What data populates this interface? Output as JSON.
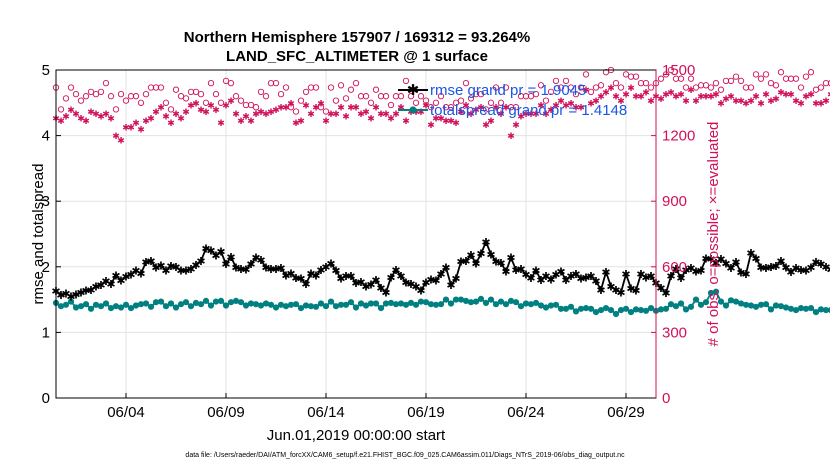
{
  "colors": {
    "rmse": "#000000",
    "spread": "#008080",
    "obs": "#d0105a",
    "legend_text": "#1a56e8",
    "grid": "#e3e3e3"
  },
  "chart_data": {
    "type": "line",
    "title": "Northern Hemisphere 157907 / 169312 = 93.264%",
    "subtitle": "LAND_SFC_ALTIMETER @ 1 surface",
    "xlabel": "Jun.01,2019 00:00:00 start",
    "ylabel": "rmse and totalspread",
    "ylabel_right": "# of obs: o=possible; ×=evaluated",
    "ylim": [
      0,
      5
    ],
    "ylim_right": [
      0,
      1500
    ],
    "y_ticks": [
      "0",
      "1",
      "2",
      "3",
      "4",
      "5"
    ],
    "y_ticks_right": [
      "0",
      "300",
      "600",
      "900",
      "1200",
      "1500"
    ],
    "x_ticks": [
      "06/04",
      "06/09",
      "06/14",
      "06/19",
      "06/24",
      "06/29"
    ],
    "x_tick_positions_days": [
      3.5,
      8.5,
      13.5,
      18.5,
      23.5,
      28.5
    ],
    "xlim_days": [
      0,
      30
    ],
    "step_days": 0.25,
    "legend": [
      "rmse grand pr = 1.9045",
      "totalspread grand pr = 1.4148"
    ],
    "footnote": "data file: /Users/raeder/DAI/ATM_forcXX/CAM6_setup/f.e21.FHIST_BGC.f09_025.CAM6assim.011/Diags_NTrS_2019-06/obs_diag_output.nc",
    "series": [
      {
        "name": "rmse",
        "axis": "left",
        "values": [
          1.63,
          1.57,
          1.59,
          1.55,
          1.58,
          1.61,
          1.64,
          1.65,
          1.7,
          1.72,
          1.78,
          1.74,
          1.87,
          1.79,
          1.85,
          1.88,
          1.94,
          1.9,
          2.07,
          2.09,
          1.99,
          2.02,
          1.94,
          2.01,
          2,
          1.94,
          1.94,
          1.97,
          2.03,
          2.09,
          2.28,
          2.25,
          2.17,
          2.23,
          2.04,
          2.15,
          1.99,
          1.97,
          1.96,
          2.04,
          2.14,
          2.1,
          1.99,
          1.97,
          1.97,
          1.98,
          1.87,
          1.9,
          1.83,
          1.82,
          1.74,
          1.9,
          1.87,
          1.95,
          2,
          2.05,
          1.94,
          1.82,
          1.86,
          1.86,
          1.75,
          1.77,
          1.7,
          1.73,
          1.8,
          1.68,
          1.61,
          1.84,
          1.95,
          1.86,
          1.76,
          1.74,
          1.7,
          1.64,
          1.76,
          1.81,
          1.79,
          1.89,
          1.99,
          1.72,
          1.82,
          2.08,
          2.09,
          2.18,
          2.05,
          2.2,
          2.38,
          2.19,
          2.08,
          2.06,
          1.93,
          2.14,
          1.95,
          1.97,
          1.88,
          1.83,
          1.94,
          1.8,
          1.86,
          1.81,
          1.88,
          1.93,
          1.8,
          1.86,
          1.89,
          1.82,
          1.84,
          1.86,
          1.78,
          1.65,
          1.92,
          1.7,
          1.65,
          1.61,
          1.89,
          1.67,
          1.64,
          1.89,
          1.84,
          1.86,
          1.75,
          1.68,
          1.6,
          1.86,
          1.97,
          1.83,
          1.95,
          1.98,
          1.93,
          1.94,
          2.13,
          2.12,
          2.06,
          2.12,
          2.05,
          1.98,
          2.07,
          1.91,
          1.89,
          2.21,
          2.13,
          1.99,
          1.98,
          2,
          2.01,
          2.09,
          1.99,
          1.92,
          1.98,
          1.95,
          1.94,
          1.99,
          2.07,
          2.04,
          2,
          1.96,
          2.03,
          2.04,
          1.98,
          1.91,
          1.96,
          2.09,
          2.06,
          1.99,
          2.01,
          2.09,
          2.24,
          2.24,
          2.14,
          2.21,
          2.05,
          2.07,
          2.03,
          2.06,
          1.98,
          2.2,
          2.05,
          1.94,
          2.11,
          2.06,
          1.94,
          1.88,
          1.85,
          1.86,
          1.84,
          1.72,
          1.77,
          1.84
        ]
      },
      {
        "name": "totalspread",
        "axis": "left",
        "values": [
          1.45,
          1.4,
          1.42,
          1.47,
          1.38,
          1.4,
          1.43,
          1.36,
          1.42,
          1.4,
          1.44,
          1.37,
          1.4,
          1.38,
          1.42,
          1.37,
          1.41,
          1.43,
          1.44,
          1.39,
          1.46,
          1.47,
          1.4,
          1.44,
          1.38,
          1.43,
          1.46,
          1.4,
          1.45,
          1.43,
          1.48,
          1.41,
          1.47,
          1.48,
          1.41,
          1.46,
          1.48,
          1.46,
          1.41,
          1.44,
          1.43,
          1.41,
          1.44,
          1.42,
          1.38,
          1.42,
          1.4,
          1.42,
          1.43,
          1.37,
          1.41,
          1.4,
          1.39,
          1.44,
          1.4,
          1.47,
          1.4,
          1.42,
          1.42,
          1.46,
          1.38,
          1.44,
          1.41,
          1.44,
          1.44,
          1.37,
          1.44,
          1.45,
          1.43,
          1.44,
          1.42,
          1.45,
          1.42,
          1.47,
          1.46,
          1.43,
          1.42,
          1.43,
          1.5,
          1.44,
          1.5,
          1.5,
          1.48,
          1.46,
          1.47,
          1.51,
          1.45,
          1.5,
          1.43,
          1.47,
          1.43,
          1.48,
          1.46,
          1.4,
          1.44,
          1.43,
          1.45,
          1.41,
          1.38,
          1.41,
          1.42,
          1.36,
          1.36,
          1.39,
          1.32,
          1.36,
          1.37,
          1.36,
          1.31,
          1.34,
          1.37,
          1.34,
          1.28,
          1.34,
          1.36,
          1.31,
          1.35,
          1.34,
          1.33,
          1.37,
          1.33,
          1.35,
          1.36,
          1.43,
          1.4,
          1.44,
          1.35,
          1.39,
          1.5,
          1.42,
          1.46,
          1.6,
          1.62,
          1.47,
          1.41,
          1.49,
          1.47,
          1.44,
          1.42,
          1.41,
          1.39,
          1.42,
          1.43,
          1.35,
          1.41,
          1.4,
          1.38,
          1.36,
          1.34,
          1.37,
          1.36,
          1.37,
          1.31,
          1.35,
          1.34,
          1.34,
          1.37,
          1.35,
          1.34,
          1.36,
          1.36,
          1.33,
          1.34,
          1.35,
          1.36,
          1.34,
          1.35,
          1.36,
          1.39,
          1.34,
          1.38,
          1.39,
          1.37,
          1.38,
          1.41,
          1.37,
          1.39,
          1.44,
          1.49,
          1.41,
          1.4,
          1.45,
          1.48,
          1.42,
          1.45,
          1.48,
          1.5,
          1.44,
          1.43,
          1.44,
          1.41,
          1.39,
          1.45,
          1.37
        ]
      },
      {
        "name": "possible",
        "axis": "right",
        "values": [
          1420,
          1320,
          1370,
          1420,
          1390,
          1360,
          1380,
          1400,
          1390,
          1400,
          1440,
          1380,
          1320,
          1390,
          1360,
          1380,
          1380,
          1350,
          1390,
          1420,
          1420,
          1420,
          1350,
          1320,
          1410,
          1380,
          1370,
          1400,
          1400,
          1390,
          1350,
          1440,
          1390,
          1350,
          1450,
          1440,
          1380,
          1360,
          1340,
          1340,
          1330,
          1400,
          1380,
          1440,
          1440,
          1390,
          1420,
          1330,
          1310,
          1360,
          1400,
          1420,
          1420,
          1330,
          1310,
          1420,
          1360,
          1430,
          1370,
          1410,
          1440,
          1380,
          1380,
          1350,
          1410,
          1380,
          1380,
          1340,
          1380,
          1380,
          1450,
          1380,
          1350,
          1380,
          1360,
          1330,
          1350,
          1380,
          1330,
          1330,
          1350,
          1360,
          1440,
          1370,
          1390,
          1390,
          1320,
          1350,
          1420,
          1350,
          1420,
          1330,
          1330,
          1380,
          1380,
          1380,
          1390,
          1430,
          1360,
          1400,
          1450,
          1420,
          1450,
          1420,
          1390,
          1420,
          1480,
          1400,
          1420,
          1430,
          1490,
          1500,
          1440,
          1420,
          1480,
          1470,
          1470,
          1440,
          1440,
          1420,
          1440,
          1460,
          1480,
          1500,
          1460,
          1460,
          1420,
          1460,
          1420,
          1430,
          1430,
          1420,
          1440,
          1410,
          1450,
          1450,
          1470,
          1450,
          1420,
          1420,
          1480,
          1460,
          1480,
          1440,
          1430,
          1490,
          1460,
          1460,
          1460,
          1420,
          1470,
          1490,
          1410,
          1420,
          1440,
          1440,
          1490,
          1430,
          1460,
          1440,
          1460,
          1450,
          1420,
          1450,
          1390,
          1450,
          1440,
          1410,
          1420,
          1450,
          1420,
          1440,
          1420,
          1440,
          1430,
          1440,
          1480,
          1440,
          1400,
          1450,
          1440,
          1400,
          1440,
          1440,
          1410,
          1420,
          1440,
          1450,
          1420,
          1400,
          1400,
          1460
        ]
      },
      {
        "name": "evaluated",
        "axis": "right",
        "values": [
          1280,
          1270,
          1290,
          1320,
          1300,
          1280,
          1270,
          1310,
          1300,
          1290,
          1300,
          1280,
          1200,
          1180,
          1240,
          1240,
          1260,
          1230,
          1270,
          1280,
          1310,
          1330,
          1290,
          1260,
          1300,
          1280,
          1310,
          1340,
          1350,
          1320,
          1310,
          1340,
          1320,
          1260,
          1340,
          1360,
          1300,
          1270,
          1290,
          1270,
          1300,
          1310,
          1300,
          1310,
          1320,
          1330,
          1330,
          1350,
          1260,
          1270,
          1340,
          1300,
          1330,
          1350,
          1270,
          1300,
          1300,
          1330,
          1290,
          1330,
          1330,
          1300,
          1310,
          1280,
          1330,
          1300,
          1300,
          1280,
          1300,
          1330,
          1270,
          1310,
          1310,
          1310,
          1340,
          1250,
          1280,
          1280,
          1270,
          1270,
          1260,
          1310,
          1340,
          1300,
          1320,
          1330,
          1250,
          1270,
          1330,
          1300,
          1330,
          1200,
          1250,
          1290,
          1300,
          1300,
          1300,
          1340,
          1300,
          1320,
          1340,
          1360,
          1340,
          1350,
          1330,
          1330,
          1410,
          1350,
          1360,
          1380,
          1400,
          1420,
          1380,
          1360,
          1390,
          1420,
          1380,
          1380,
          1400,
          1360,
          1380,
          1370,
          1390,
          1400,
          1380,
          1390,
          1360,
          1410,
          1360,
          1380,
          1380,
          1380,
          1390,
          1350,
          1370,
          1380,
          1360,
          1360,
          1350,
          1360,
          1380,
          1350,
          1390,
          1360,
          1370,
          1400,
          1390,
          1390,
          1360,
          1350,
          1380,
          1390,
          1350,
          1350,
          1360,
          1390,
          1400,
          1360,
          1380,
          1360,
          1390,
          1400,
          1360,
          1380,
          1310,
          1390,
          1380,
          1350,
          1360,
          1400,
          1360,
          1380,
          1370,
          1370,
          1350,
          1360,
          1400,
          1360,
          1320,
          1380,
          1360,
          1330,
          1370,
          1380,
          1340,
          1370,
          1380,
          1390,
          1370,
          1360,
          1330,
          1360
        ]
      }
    ]
  }
}
